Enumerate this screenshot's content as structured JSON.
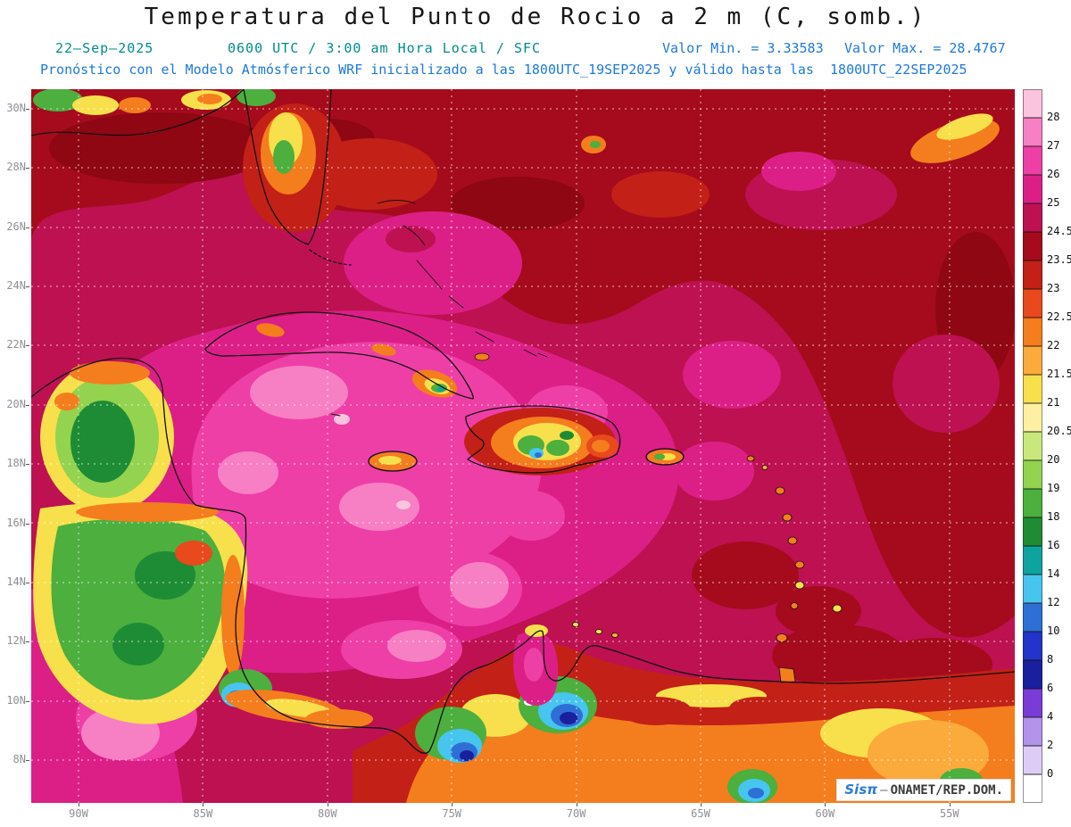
{
  "title": "Temperatura del Punto de Rocio a 2 m (C, somb.)",
  "header": {
    "date": "22–Sep–2025",
    "time_line": "0600 UTC / 3:00 am Hora Local / SFC",
    "min_value_label": "Valor Min. = 3.33583",
    "max_value_label": "Valor Max. = 28.4767",
    "forecast_line": "Pronóstico con el Modelo Atmósferico WRF inicializado a las 1800UTC_19SEP2025 y válido hasta las  1800UTC_22SEP2025"
  },
  "map": {
    "lat_labels": [
      "30N",
      "28N",
      "26N",
      "24N",
      "22N",
      "20N",
      "18N",
      "16N",
      "14N",
      "12N",
      "10N",
      "8N"
    ],
    "lon_labels": [
      "90W",
      "85W",
      "80W",
      "75W",
      "70W",
      "65W",
      "60W",
      "55W"
    ],
    "watermark": {
      "brand": "Sisπ",
      "separator": "–",
      "org": "ONAMET/REP.DOM."
    }
  },
  "colorbar": {
    "labels": [
      "28",
      "27",
      "26",
      "25",
      "24.5",
      "23.5",
      "23",
      "22.5",
      "22",
      "21.5",
      "21",
      "20.5",
      "20",
      "19",
      "18",
      "16",
      "14",
      "12",
      "10",
      "8",
      "6",
      "4",
      "2",
      "0"
    ],
    "colors": [
      "#fbc4de",
      "#f77fc4",
      "#ee3fa6",
      "#dc1f87",
      "#bd1152",
      "#a50b1c",
      "#c32017",
      "#e8491d",
      "#f47d1e",
      "#fbaa3c",
      "#f7e04b",
      "#fdf0a0",
      "#c9e87b",
      "#93d34f",
      "#4caf3e",
      "#1e8c34",
      "#0fa3a0",
      "#47c5ee",
      "#2e6fd6",
      "#2433c9",
      "#1a1f9e",
      "#7a3bd6",
      "#b493ea",
      "#ddcdf6",
      "#ffffff"
    ]
  },
  "chart_data": {
    "type": "heatmap",
    "title": "Temperatura del Punto de Rocio a 2 m (C, somb.)",
    "valid_time": "22–Sep–2025 0600 UTC / 3:00 am Hora Local / SFC",
    "model_run": "WRF inicializado a las 1800UTC_19SEP2025, válido hasta las 1800UTC_22SEP2025",
    "units": "C",
    "value_min": 3.33583,
    "value_max": 28.4767,
    "x_tick_labels": [
      "90W",
      "85W",
      "80W",
      "75W",
      "70W",
      "65W",
      "60W",
      "55W"
    ],
    "y_tick_labels": [
      "30N",
      "28N",
      "26N",
      "24N",
      "22N",
      "20N",
      "18N",
      "16N",
      "14N",
      "12N",
      "10N",
      "8N"
    ],
    "color_levels_c": [
      28,
      27,
      26,
      25,
      24.5,
      23.5,
      23,
      22.5,
      22,
      21.5,
      21,
      20.5,
      20,
      19,
      18,
      16,
      14,
      12,
      10,
      8,
      6,
      4,
      2,
      0
    ],
    "legend_position": "right",
    "grid": true
  }
}
